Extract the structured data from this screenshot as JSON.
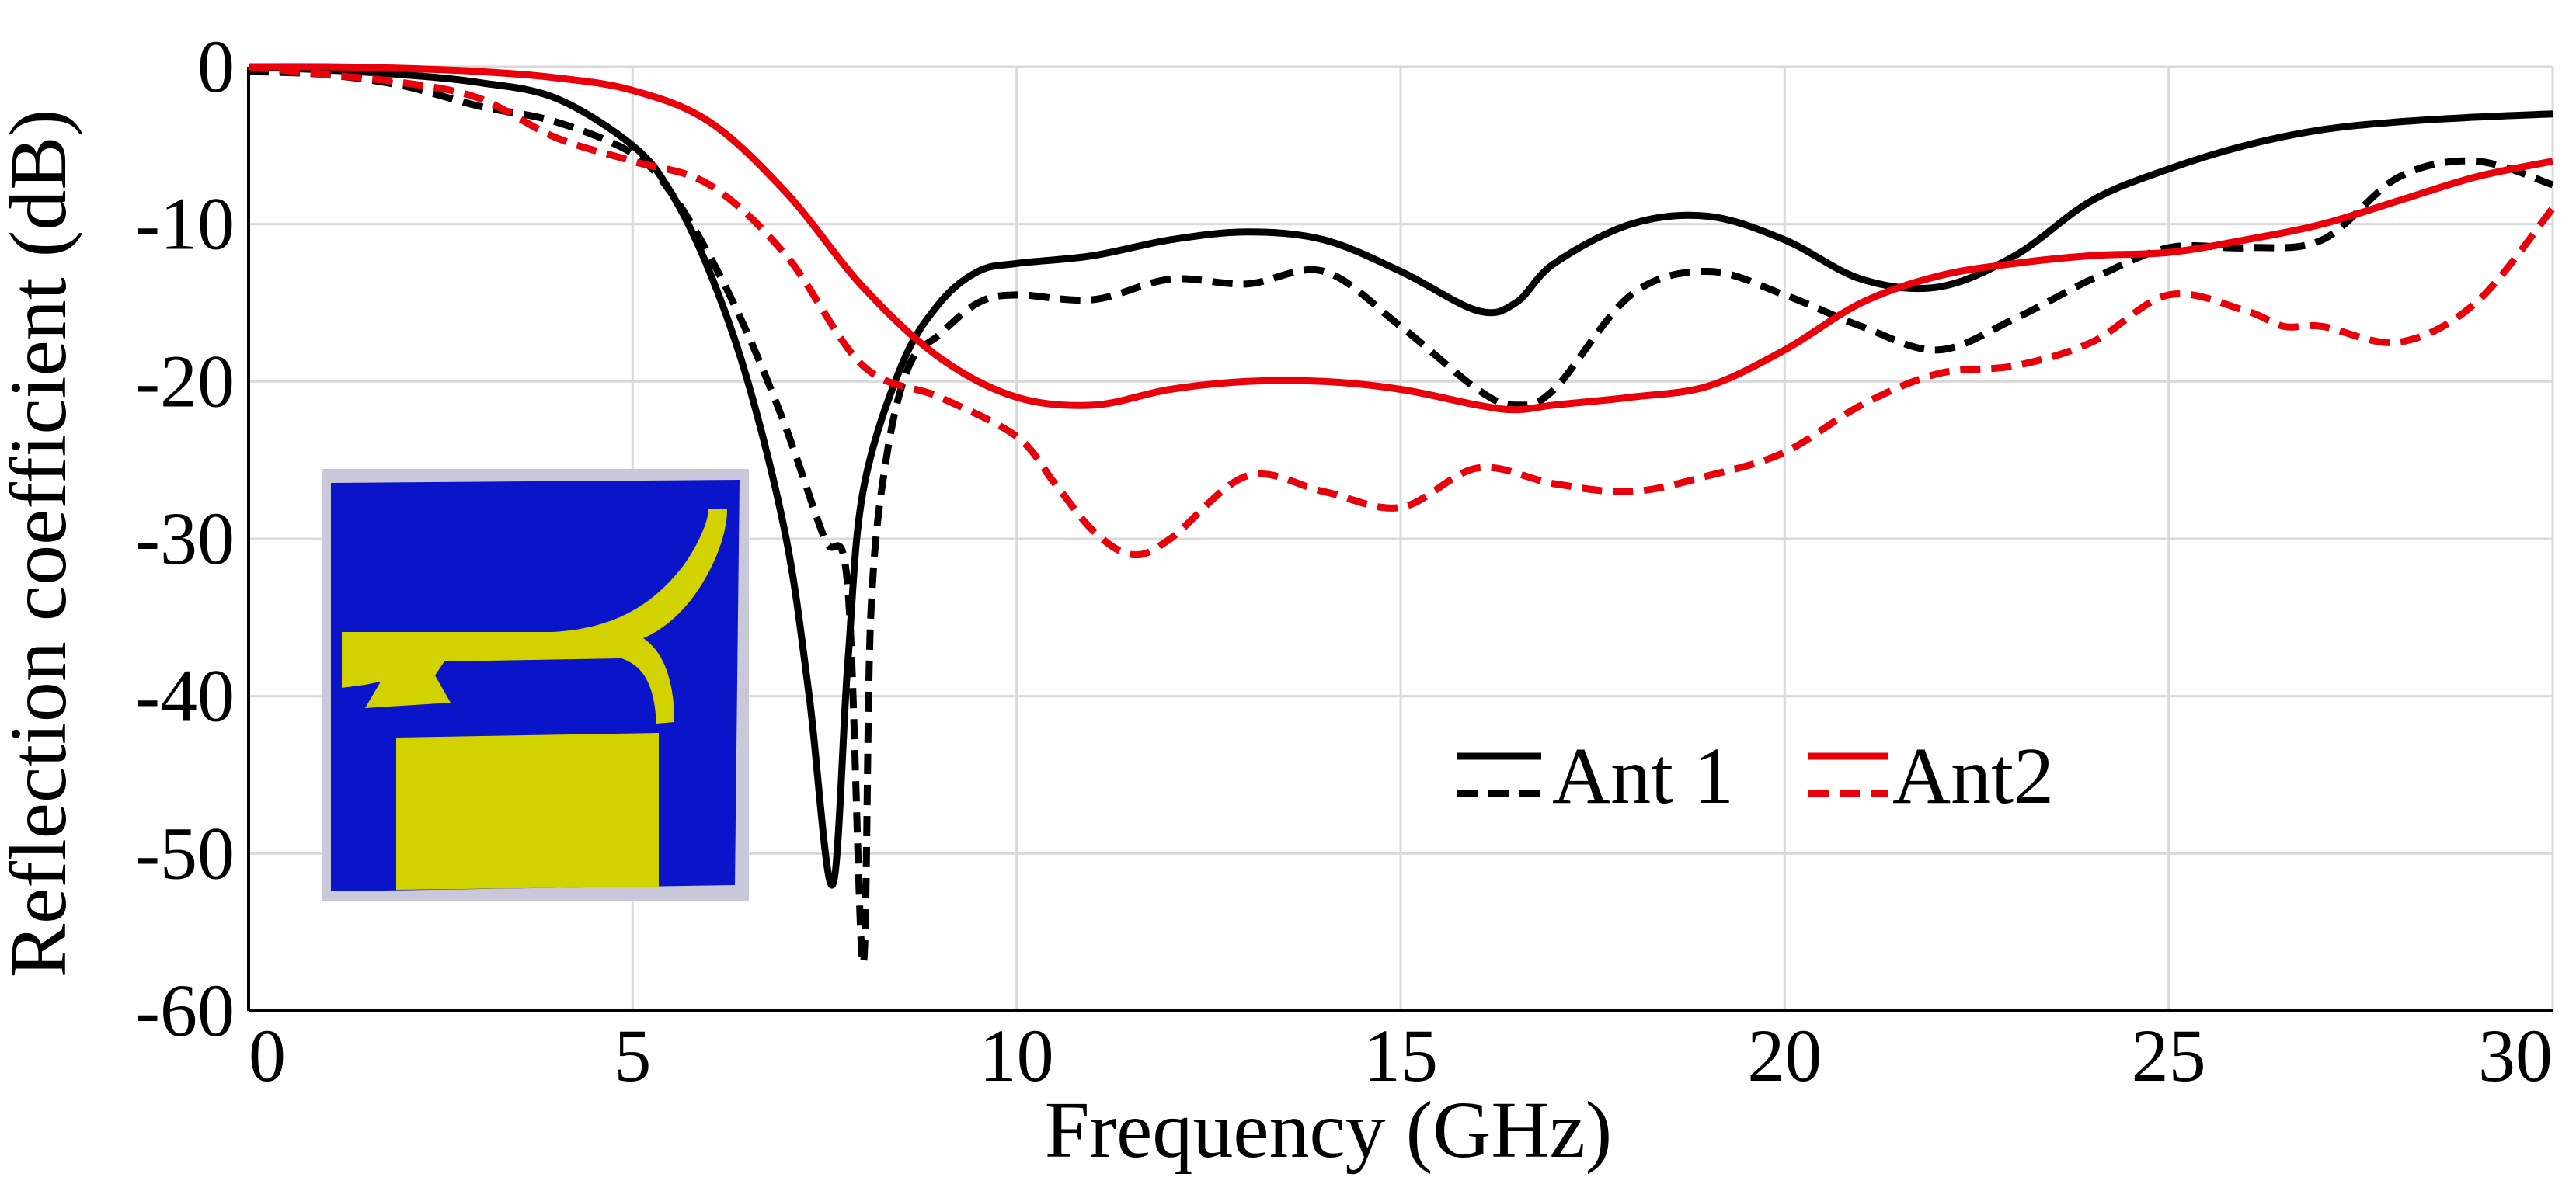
{
  "chart_data": {
    "type": "line",
    "title": "",
    "xlabel": "Frequency (GHz)",
    "ylabel": "Reflection coefficient (dB)",
    "xlim": [
      0,
      30
    ],
    "ylim": [
      -60,
      0
    ],
    "x_ticks": [
      0,
      5,
      10,
      15,
      20,
      25,
      30
    ],
    "y_ticks": [
      0,
      -10,
      -20,
      -30,
      -40,
      -50,
      -60
    ],
    "x_tick_labels": [
      "0",
      "5",
      "10",
      "15",
      "20",
      "25",
      "30"
    ],
    "y_tick_labels": [
      "0",
      "-10",
      "-20",
      "-30",
      "-40",
      "-50",
      "-60"
    ],
    "grid": true,
    "legend": {
      "placement": "center-right",
      "entries": [
        "Ant 1",
        "Ant2"
      ]
    },
    "colors": {
      "Ant 1": "#000000",
      "Ant2": "#e8000b",
      "grid": "#d9d9d9"
    },
    "inset": "antenna-layout-image",
    "series": [
      {
        "name": "Ant 1",
        "legend_group": "Ant 1",
        "style": "solid",
        "x": [
          0,
          1,
          2,
          3,
          4,
          5,
          5.5,
          6,
          6.5,
          7,
          7.3,
          7.6,
          7.8,
          8,
          8.5,
          9,
          9.5,
          10,
          11,
          12,
          13,
          14,
          15,
          16,
          16.5,
          17,
          18,
          19,
          20,
          21,
          22,
          23,
          24,
          25,
          26,
          27,
          28,
          29,
          30
        ],
        "y": [
          0,
          -0.2,
          -0.5,
          -1,
          -2,
          -5,
          -8,
          -13,
          -20,
          -30,
          -40,
          -52,
          -38,
          -27,
          -19,
          -15,
          -13,
          -12.5,
          -12,
          -11,
          -10.5,
          -11,
          -13,
          -15.5,
          -15,
          -12.5,
          -10,
          -9.5,
          -11,
          -13.5,
          -14,
          -12,
          -8.5,
          -6.5,
          -5,
          -4,
          -3.5,
          -3.2,
          -3
        ]
      },
      {
        "name": "",
        "legend_group": "Ant 1",
        "style": "dashed",
        "x": [
          0,
          1,
          2,
          3,
          4,
          5,
          5.5,
          6,
          6.5,
          7,
          7.5,
          7.8,
          8,
          8.1,
          8.3,
          8.6,
          9,
          9.5,
          10,
          11,
          12,
          13,
          14,
          15,
          16,
          16.5,
          17,
          18,
          19,
          20,
          21,
          22,
          23,
          24,
          25,
          26,
          27,
          28,
          29,
          30
        ],
        "y": [
          -0.3,
          -0.5,
          -1.2,
          -2.5,
          -3.5,
          -5.5,
          -8,
          -12,
          -17,
          -23,
          -30,
          -33,
          -57,
          -35,
          -25,
          -19,
          -17,
          -15,
          -14.5,
          -14.8,
          -13.5,
          -13.8,
          -13,
          -16.5,
          -20.5,
          -21.5,
          -20.5,
          -14.5,
          -13,
          -14.5,
          -16.5,
          -18,
          -16,
          -13.5,
          -11.5,
          -11.5,
          -11,
          -7,
          -6,
          -7.5
        ]
      },
      {
        "name": "Ant2",
        "legend_group": "Ant2",
        "style": "solid",
        "x": [
          0,
          1,
          2,
          3,
          4,
          5,
          6,
          7,
          8,
          9,
          10,
          11,
          12,
          13,
          14,
          15,
          16,
          16.5,
          17,
          18,
          19,
          20,
          21,
          22,
          23,
          24,
          25,
          26,
          27,
          28,
          29,
          30
        ],
        "y": [
          0,
          0,
          -0.1,
          -0.3,
          -0.7,
          -1.5,
          -3.5,
          -8,
          -14,
          -18.5,
          -21,
          -21.5,
          -20.5,
          -20,
          -20,
          -20.5,
          -21.5,
          -21.8,
          -21.5,
          -21,
          -20.3,
          -18,
          -15,
          -13.3,
          -12.5,
          -12,
          -11.8,
          -11,
          -10,
          -8.5,
          -7,
          -6
        ]
      },
      {
        "name": "",
        "legend_group": "Ant2",
        "style": "dashed",
        "x": [
          0,
          1,
          2,
          3,
          4,
          5,
          6,
          7,
          8,
          9,
          10,
          10.5,
          11,
          11.5,
          12,
          13,
          14,
          15,
          16,
          17,
          18,
          19,
          20,
          21,
          22,
          23,
          24,
          25,
          26,
          26.5,
          27,
          28,
          29,
          30
        ],
        "y": [
          0,
          -0.5,
          -1,
          -2,
          -4.5,
          -6,
          -7.5,
          -12,
          -19,
          -21,
          -23.5,
          -26.5,
          -29.5,
          -31,
          -30,
          -26,
          -27,
          -28,
          -25.5,
          -26.5,
          -27,
          -26,
          -24.5,
          -21.5,
          -19.5,
          -19,
          -17.5,
          -14.5,
          -15.5,
          -16.5,
          -16.5,
          -17.5,
          -15,
          -9
        ]
      }
    ]
  }
}
